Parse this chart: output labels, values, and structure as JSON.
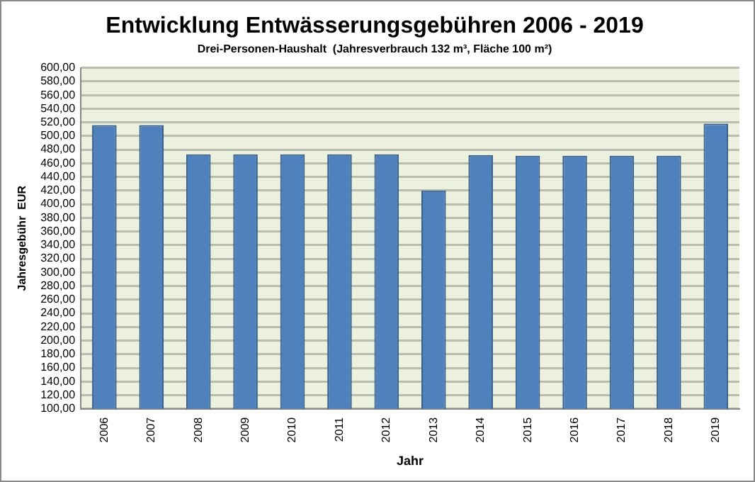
{
  "chart_data": {
    "type": "bar",
    "title": "Entwicklung Entwässerungsgebühren 2006 - 2019",
    "subtitle": "Drei-Personen-Haushalt  (Jahresverbrauch 132 m³, Fläche 100 m²)",
    "xlabel": "Jahr",
    "ylabel": "Jahresgebühr  EUR",
    "categories": [
      "2006",
      "2007",
      "2008",
      "2009",
      "2010",
      "2011",
      "2012",
      "2013",
      "2014",
      "2015",
      "2016",
      "2017",
      "2018",
      "2019"
    ],
    "values": [
      516,
      516,
      473,
      473,
      473,
      473,
      473,
      420,
      472,
      471,
      471,
      471,
      471,
      518
    ],
    "color": "#4f81bd",
    "ylim": [
      100,
      600
    ],
    "yticks": [
      {
        "value": 100,
        "label": "100,00"
      },
      {
        "value": 120,
        "label": "120,00"
      },
      {
        "value": 140,
        "label": "140,00"
      },
      {
        "value": 160,
        "label": "160,00"
      },
      {
        "value": 180,
        "label": "180,00"
      },
      {
        "value": 200,
        "label": "200,00"
      },
      {
        "value": 220,
        "label": "220,00"
      },
      {
        "value": 240,
        "label": "240,00"
      },
      {
        "value": 260,
        "label": "260,00"
      },
      {
        "value": 280,
        "label": "280,00"
      },
      {
        "value": 300,
        "label": "300,00"
      },
      {
        "value": 320,
        "label": "320,00"
      },
      {
        "value": 340,
        "label": "340,00"
      },
      {
        "value": 360,
        "label": "360,00"
      },
      {
        "value": 380,
        "label": "380,00"
      },
      {
        "value": 400,
        "label": "400,00"
      },
      {
        "value": 420,
        "label": "420,00"
      },
      {
        "value": 440,
        "label": "440,00"
      },
      {
        "value": 460,
        "label": "460,00"
      },
      {
        "value": 480,
        "label": "480,00"
      },
      {
        "value": 500,
        "label": "500,00"
      },
      {
        "value": 520,
        "label": "520,00"
      },
      {
        "value": 540,
        "label": "540,00"
      },
      {
        "value": 560,
        "label": "560,00"
      },
      {
        "value": 580,
        "label": "580,00"
      },
      {
        "value": 600,
        "label": "600,00"
      }
    ],
    "grid": "y"
  }
}
